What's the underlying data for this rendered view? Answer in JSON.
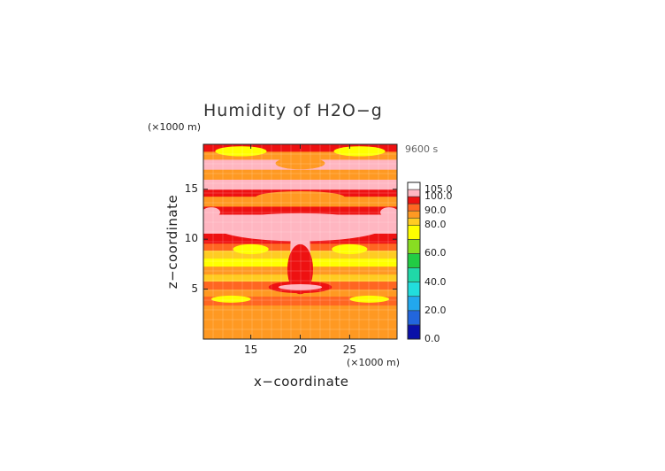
{
  "chart_data": {
    "type": "heatmap",
    "title": "Humidity of H2O−g",
    "xlabel": "x−coordinate",
    "ylabel": "z−coordinate",
    "x_unit": "(×1000 m)",
    "y_unit": "(×1000 m)",
    "time_label": "9600 s",
    "xlim": [
      10.2,
      29.8
    ],
    "ylim": [
      0,
      19.5
    ],
    "x_ticks": [
      {
        "value": 15,
        "label": "15"
      },
      {
        "value": 20,
        "label": "20"
      },
      {
        "value": 25,
        "label": "25"
      }
    ],
    "y_ticks": [
      {
        "value": 5,
        "label": "5"
      },
      {
        "value": 10,
        "label": "10"
      },
      {
        "value": 15,
        "label": "15"
      }
    ],
    "colorbar": {
      "range": [
        0,
        105
      ],
      "ticks": [
        {
          "value": 0,
          "label": "0.0"
        },
        {
          "value": 20,
          "label": "20.0"
        },
        {
          "value": 40,
          "label": "40.0"
        },
        {
          "value": 60,
          "label": "60.0"
        },
        {
          "value": 80,
          "label": "80.0"
        },
        {
          "value": 90,
          "label": "90.0"
        },
        {
          "value": 100,
          "label": "100.0"
        },
        {
          "value": 105,
          "label": "105.0"
        }
      ],
      "levels": [
        {
          "from": 0,
          "to": 10,
          "color": "#0a10a8"
        },
        {
          "from": 10,
          "to": 20,
          "color": "#2266dd"
        },
        {
          "from": 20,
          "to": 30,
          "color": "#22a8ee"
        },
        {
          "from": 30,
          "to": 40,
          "color": "#22dddd"
        },
        {
          "from": 40,
          "to": 50,
          "color": "#20d8a8"
        },
        {
          "from": 50,
          "to": 60,
          "color": "#22cc44"
        },
        {
          "from": 60,
          "to": 70,
          "color": "#88dd22"
        },
        {
          "from": 70,
          "to": 80,
          "color": "#ffff00"
        },
        {
          "from": 80,
          "to": 85,
          "color": "#ffcc22"
        },
        {
          "from": 85,
          "to": 90,
          "color": "#ff9922"
        },
        {
          "from": 90,
          "to": 95,
          "color": "#ff6622"
        },
        {
          "from": 95,
          "to": 100,
          "color": "#ee1111"
        },
        {
          "from": 100,
          "to": 105,
          "color": "#ffb6c1"
        },
        {
          "from": 105,
          "to": 110,
          "color": "#ffffff"
        }
      ]
    },
    "bands": [
      {
        "z0": 0.0,
        "z1": 0.8,
        "value": 88
      },
      {
        "z0": 0.8,
        "z1": 1.6,
        "value": 85
      },
      {
        "z0": 1.6,
        "z1": 2.5,
        "value": 89
      },
      {
        "z0": 2.5,
        "z1": 3.4,
        "value": 87
      },
      {
        "z0": 3.4,
        "z1": 4.3,
        "value": 91
      },
      {
        "z0": 4.3,
        "z1": 5.0,
        "value": 86
      },
      {
        "z0": 5.0,
        "z1": 5.8,
        "value": 92
      },
      {
        "z0": 5.8,
        "z1": 6.5,
        "value": 84
      },
      {
        "z0": 6.5,
        "z1": 7.3,
        "value": 89
      },
      {
        "z0": 7.3,
        "z1": 8.1,
        "value": 76
      },
      {
        "z0": 8.1,
        "z1": 8.9,
        "value": 84
      },
      {
        "z0": 8.9,
        "z1": 9.6,
        "value": 93
      },
      {
        "z0": 9.6,
        "z1": 10.6,
        "value": 97
      },
      {
        "z0": 10.6,
        "z1": 12.5,
        "value": 101
      },
      {
        "z0": 12.5,
        "z1": 13.3,
        "value": 96
      },
      {
        "z0": 13.3,
        "z1": 14.3,
        "value": 85
      },
      {
        "z0": 14.3,
        "z1": 15.0,
        "value": 97
      },
      {
        "z0": 15.0,
        "z1": 16.0,
        "value": 102
      },
      {
        "z0": 16.0,
        "z1": 17.0,
        "value": 87
      },
      {
        "z0": 17.0,
        "z1": 18.0,
        "value": 101
      },
      {
        "z0": 18.0,
        "z1": 18.8,
        "value": 88
      },
      {
        "z0": 18.8,
        "z1": 19.5,
        "value": 97
      }
    ],
    "features": [
      {
        "x": 20,
        "z": 11.2,
        "rx": 8.5,
        "rz": 1.4,
        "value": 102
      },
      {
        "x": 20,
        "z": 9.0,
        "rx": 1.0,
        "rz": 3.5,
        "value": 101
      },
      {
        "x": 20,
        "z": 7.0,
        "rx": 1.3,
        "rz": 2.5,
        "value": 97
      },
      {
        "x": 20,
        "z": 14.2,
        "rx": 4.5,
        "rz": 0.6,
        "value": 86
      },
      {
        "x": 20,
        "z": 17.6,
        "rx": 2.5,
        "rz": 0.6,
        "value": 87
      },
      {
        "x": 20,
        "z": 5.2,
        "rx": 3.2,
        "rz": 0.6,
        "value": 97
      },
      {
        "x": 20,
        "z": 5.2,
        "rx": 2.2,
        "rz": 0.3,
        "value": 101
      },
      {
        "x": 15.0,
        "z": 9.0,
        "rx": 1.8,
        "rz": 0.5,
        "value": 72
      },
      {
        "x": 25.0,
        "z": 9.0,
        "rx": 1.8,
        "rz": 0.5,
        "value": 72
      },
      {
        "x": 14.0,
        "z": 18.8,
        "rx": 2.6,
        "rz": 0.5,
        "value": 78
      },
      {
        "x": 26.0,
        "z": 18.8,
        "rx": 2.6,
        "rz": 0.5,
        "value": 78
      },
      {
        "x": 13.0,
        "z": 4.0,
        "rx": 2.0,
        "rz": 0.35,
        "value": 76
      },
      {
        "x": 27.0,
        "z": 4.0,
        "rx": 2.0,
        "rz": 0.35,
        "value": 76
      },
      {
        "x": 11.0,
        "z": 12.7,
        "rx": 0.9,
        "rz": 0.5,
        "value": 101
      },
      {
        "x": 29.0,
        "z": 12.7,
        "rx": 0.9,
        "rz": 0.5,
        "value": 101
      }
    ]
  }
}
